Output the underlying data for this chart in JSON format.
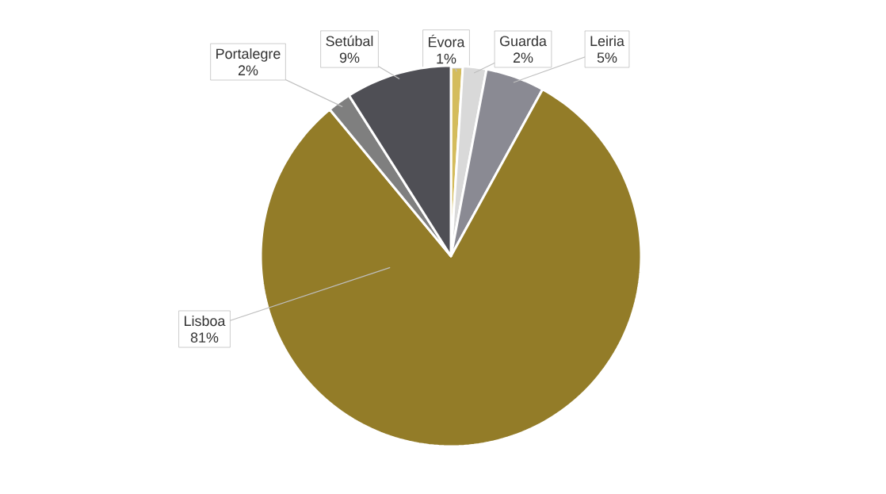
{
  "chart_data": {
    "type": "pie",
    "categories": [
      "Évora",
      "Guarda",
      "Leiria",
      "Lisboa",
      "Portalegre",
      "Setúbal"
    ],
    "values": [
      1,
      2,
      5,
      81,
      2,
      9
    ],
    "value_labels": [
      "1%",
      "2%",
      "5%",
      "81%",
      "2%",
      "9%"
    ],
    "colors": [
      "#d4bc5c",
      "#d9d9d9",
      "#8a8a93",
      "#937c28",
      "#7f7f7f",
      "#4f4f55"
    ]
  }
}
